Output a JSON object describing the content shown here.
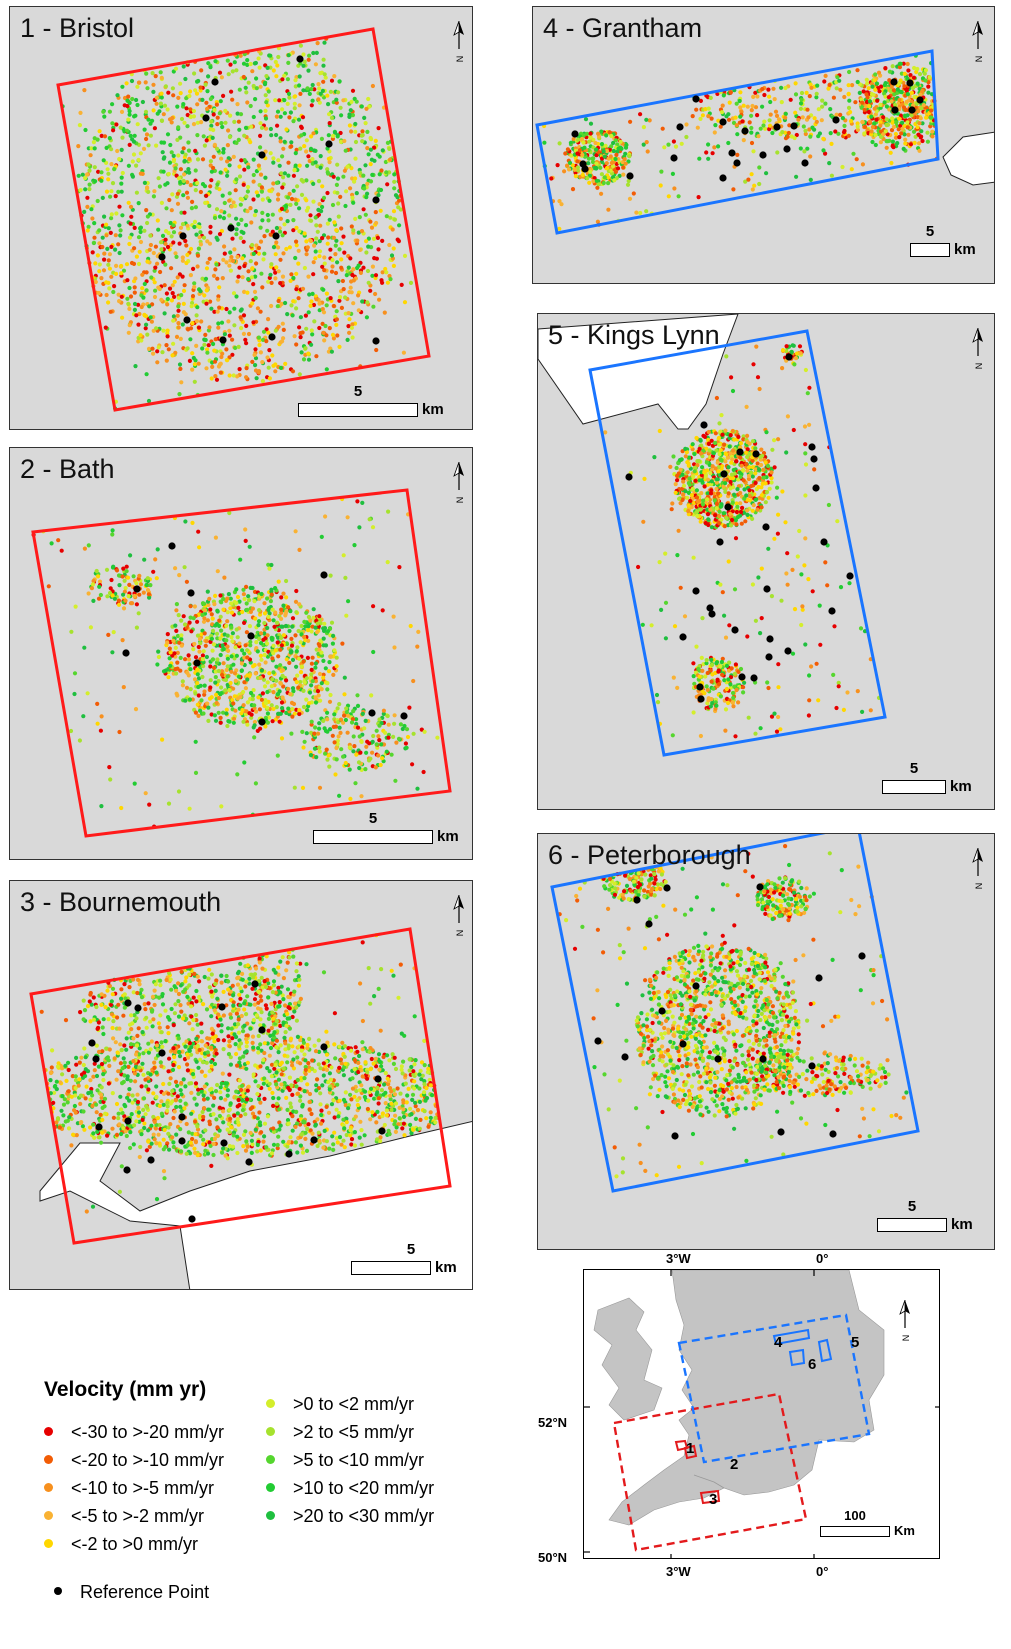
{
  "panels": [
    {
      "id": "p1",
      "title": "1 - Bristol",
      "scale_value": "5",
      "scale_unit": "km",
      "north_label": "N",
      "frame_color": "#ff1a1a"
    },
    {
      "id": "p2",
      "title": "2 - Bath",
      "scale_value": "5",
      "scale_unit": "km",
      "north_label": "N",
      "frame_color": "#ff1a1a"
    },
    {
      "id": "p3",
      "title": "3 - Bournemouth",
      "scale_value": "5",
      "scale_unit": "km",
      "north_label": "N",
      "frame_color": "#ff1a1a"
    },
    {
      "id": "p4",
      "title": "4 - Grantham",
      "scale_value": "5",
      "scale_unit": "km",
      "north_label": "N",
      "frame_color": "#1a75ff"
    },
    {
      "id": "p5",
      "title": "5 - Kings Lynn",
      "scale_value": "5",
      "scale_unit": "km",
      "north_label": "N",
      "frame_color": "#1a75ff"
    },
    {
      "id": "p6",
      "title": "6 - Peterborough",
      "scale_value": "5",
      "scale_unit": "km",
      "north_label": "N",
      "frame_color": "#1a75ff"
    }
  ],
  "legend": {
    "title": "Velocity (mm yr)",
    "left_items": [
      {
        "label": "<-30 to >-20 mm/yr",
        "color": "#e60000"
      },
      {
        "label": "<-20 to >-10 mm/yr",
        "color": "#f25c05"
      },
      {
        "label": "<-10 to >-5 mm/yr",
        "color": "#f7901e"
      },
      {
        "label": "<-5 to >-2 mm/yr",
        "color": "#f9b233"
      },
      {
        "label": "<-2 to >0 mm/yr",
        "color": "#ffd700"
      }
    ],
    "right_items": [
      {
        "label": ">0 to <2 mm/yr",
        "color": "#d4ee2b"
      },
      {
        "label": ">2 to <5 mm/yr",
        "color": "#a6e22e"
      },
      {
        "label": ">5 to <10 mm/yr",
        "color": "#55d62e"
      },
      {
        "label": ">10 to <20 mm/yr",
        "color": "#22cc33"
      },
      {
        "label": ">20 to <30 mm/yr",
        "color": "#1fbf3f"
      }
    ],
    "reference_label": "Reference Point",
    "reference_color": "#000000"
  },
  "inset": {
    "lon_top_left": "3°W",
    "lon_top_right": "0°",
    "lon_bottom_left": "3°W",
    "lon_bottom_right": "0°",
    "lat_upper": "52°N",
    "lat_lower": "50°N",
    "scale_value": "100",
    "scale_unit": "Km",
    "north_label": "N",
    "site_labels": [
      "1",
      "2",
      "3",
      "4",
      "5",
      "6"
    ],
    "red_color": "#e31a1c",
    "blue_color": "#1a75ff"
  }
}
